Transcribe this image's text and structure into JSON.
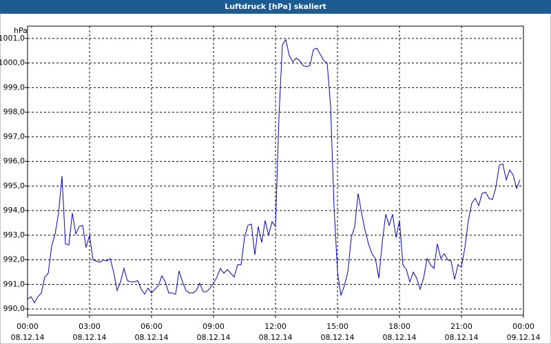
{
  "chart_data": {
    "type": "line",
    "title": "Luftdruck [hPa] skaliert",
    "ylabel": "hPa",
    "xlim": [
      0,
      1440
    ],
    "ylim": [
      989.75,
      1001.5
    ],
    "grid": true,
    "xticks": [
      {
        "value": 0,
        "label": "00:00"
      },
      {
        "value": 180,
        "label": "03:00"
      },
      {
        "value": 360,
        "label": "06:00"
      },
      {
        "value": 540,
        "label": "09:00"
      },
      {
        "value": 720,
        "label": "12:00"
      },
      {
        "value": 900,
        "label": "15:00"
      },
      {
        "value": 1080,
        "label": "18:00"
      },
      {
        "value": 1260,
        "label": "21:00"
      },
      {
        "value": 1440,
        "label": "00:00"
      }
    ],
    "xtick_dates": [
      "08.12.14",
      "08.12.14",
      "08.12.14",
      "08.12.14",
      "08.12.14",
      "08.12.14",
      "08.12.14",
      "08.12.14",
      "09.12.14"
    ],
    "yticks": [
      {
        "value": 990,
        "label": "990,0"
      },
      {
        "value": 991,
        "label": "991,0"
      },
      {
        "value": 992,
        "label": "992,0"
      },
      {
        "value": 993,
        "label": "993,0"
      },
      {
        "value": 994,
        "label": "994,0"
      },
      {
        "value": 995,
        "label": "995,0"
      },
      {
        "value": 996,
        "label": "996,0"
      },
      {
        "value": 997,
        "label": "997,0"
      },
      {
        "value": 998,
        "label": "998,0"
      },
      {
        "value": 999,
        "label": "999,0"
      },
      {
        "value": 1000,
        "label": "1000,0"
      },
      {
        "value": 1001,
        "label": "1001,0"
      }
    ],
    "x": [
      0,
      10,
      20,
      30,
      40,
      50,
      60,
      70,
      80,
      90,
      100,
      110,
      120,
      130,
      140,
      150,
      160,
      170,
      180,
      190,
      200,
      210,
      220,
      230,
      240,
      250,
      260,
      270,
      280,
      290,
      300,
      310,
      320,
      330,
      340,
      350,
      360,
      370,
      380,
      390,
      400,
      410,
      420,
      430,
      440,
      450,
      460,
      470,
      480,
      490,
      500,
      510,
      520,
      530,
      540,
      550,
      560,
      570,
      580,
      590,
      600,
      610,
      620,
      630,
      640,
      650,
      660,
      670,
      680,
      690,
      700,
      710,
      720,
      730,
      740,
      750,
      760,
      770,
      780,
      790,
      800,
      810,
      820,
      830,
      840,
      850,
      860,
      870,
      880,
      890,
      900,
      910,
      920,
      930,
      940,
      950,
      960,
      970,
      980,
      990,
      1000,
      1010,
      1020,
      1030,
      1040,
      1050,
      1060,
      1070,
      1080,
      1090,
      1100,
      1110,
      1120,
      1130,
      1140,
      1150,
      1160,
      1170,
      1180,
      1190,
      1200,
      1210,
      1220,
      1230,
      1240,
      1250,
      1260,
      1270,
      1280,
      1290,
      1300,
      1310,
      1320,
      1330,
      1340,
      1350,
      1360,
      1370,
      1380,
      1390,
      1400,
      1410,
      1420,
      1430
    ],
    "series": [
      {
        "color": "#0000cc",
        "values": [
          990.4,
          990.5,
          990.25,
          990.5,
          990.65,
          991.3,
          991.45,
          992.55,
          993.05,
          993.9,
          995.4,
          992.65,
          992.6,
          993.9,
          993.05,
          993.35,
          993.4,
          992.5,
          993.0,
          992.0,
          991.95,
          991.9,
          992.0,
          991.95,
          992.05,
          991.5,
          990.75,
          991.1,
          991.65,
          991.15,
          991.1,
          991.1,
          991.15,
          990.8,
          990.6,
          990.85,
          990.65,
          990.8,
          990.95,
          991.35,
          991.1,
          990.65,
          990.65,
          990.6,
          991.55,
          991.1,
          990.75,
          990.65,
          990.65,
          990.75,
          991.05,
          990.7,
          990.7,
          990.85,
          991.05,
          991.3,
          991.65,
          991.45,
          991.6,
          991.45,
          991.3,
          991.8,
          991.8,
          992.9,
          993.4,
          993.45,
          992.2,
          993.35,
          992.7,
          993.6,
          993.0,
          993.55,
          993.35,
          997.8,
          1000.75,
          1000.95,
          1000.3,
          1000.05,
          1000.2,
          1000.1,
          999.9,
          999.85,
          999.9,
          1000.55,
          1000.6,
          1000.35,
          1000.1,
          1000.0,
          998.25,
          994.15,
          991.5,
          990.55,
          990.95,
          991.5,
          992.9,
          993.35,
          994.7,
          993.9,
          993.2,
          992.65,
          992.25,
          992.05,
          991.25,
          992.7,
          993.85,
          993.4,
          993.85,
          992.9,
          993.6,
          991.8,
          991.6,
          991.1,
          991.5,
          991.25,
          990.8,
          991.25,
          992.05,
          991.8,
          991.65,
          992.65,
          992.05,
          992.25,
          992.0,
          991.95,
          991.2,
          991.8,
          991.7,
          992.5,
          993.6,
          994.3,
          994.5,
          994.2,
          994.7,
          994.75,
          994.5,
          994.45,
          994.95,
          995.85,
          995.9,
          995.25,
          995.65,
          995.45,
          994.9,
          995.25
        ]
      }
    ]
  }
}
